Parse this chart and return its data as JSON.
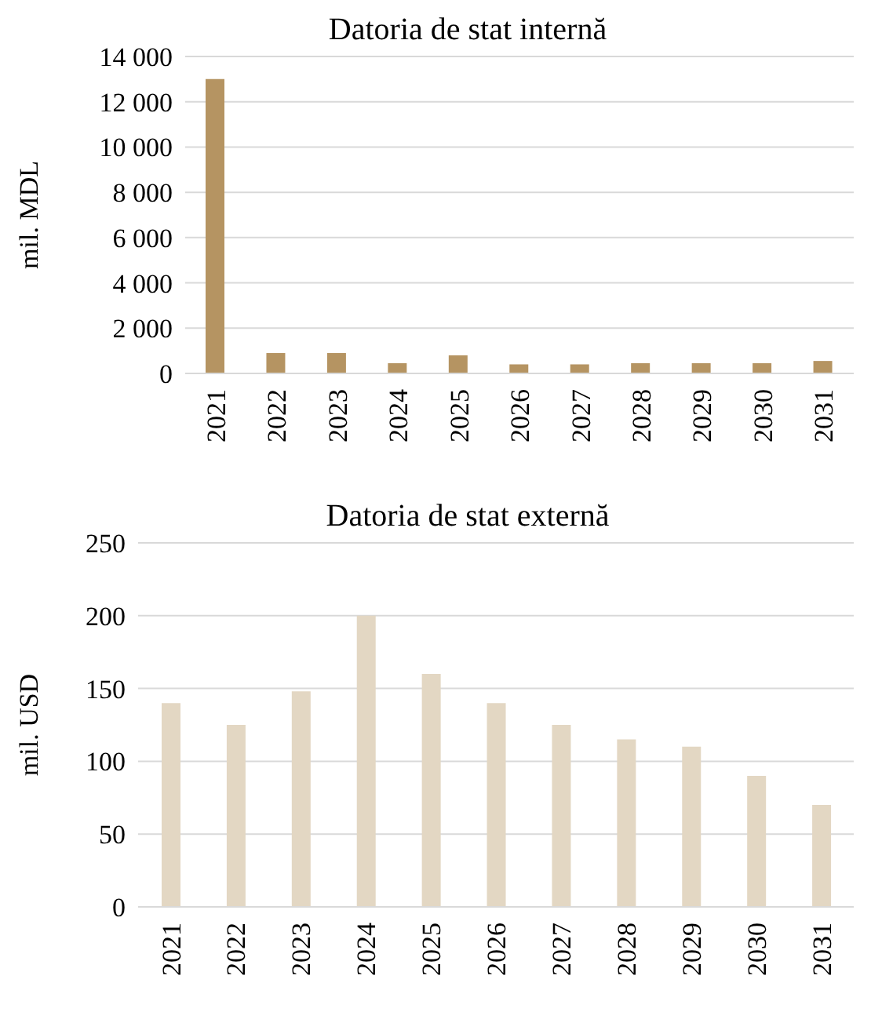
{
  "chart_data": [
    {
      "type": "bar",
      "title": "Datoria de stat internă",
      "ylabel": "mil. MDL",
      "categories": [
        "2021",
        "2022",
        "2023",
        "2024",
        "2025",
        "2026",
        "2027",
        "2028",
        "2029",
        "2030",
        "2031"
      ],
      "series": [
        {
          "color": "#b59462",
          "values": [
            13000,
            900,
            900,
            450,
            800,
            400,
            400,
            450,
            450,
            450,
            550
          ]
        }
      ],
      "ylim": [
        0,
        14000
      ],
      "yticks": [
        {
          "value": 0,
          "label": "0"
        },
        {
          "value": 2000,
          "label": "2 000"
        },
        {
          "value": 4000,
          "label": "4 000"
        },
        {
          "value": 6000,
          "label": "6 000"
        },
        {
          "value": 8000,
          "label": "8 000"
        },
        {
          "value": 10000,
          "label": "10 000"
        },
        {
          "value": 12000,
          "label": "12 000"
        },
        {
          "value": 14000,
          "label": "14 000"
        }
      ],
      "grid": "y"
    },
    {
      "type": "bar",
      "title": "Datoria de stat externă",
      "ylabel": "mil. USD",
      "categories": [
        "2021",
        "2022",
        "2023",
        "2024",
        "2025",
        "2026",
        "2027",
        "2028",
        "2029",
        "2030",
        "2031"
      ],
      "series": [
        {
          "color": "#e3d7c3",
          "values": [
            140,
            125,
            148,
            200,
            160,
            140,
            125,
            115,
            110,
            90,
            70
          ]
        }
      ],
      "ylim": [
        0,
        250
      ],
      "yticks": [
        0,
        50,
        100,
        150,
        200,
        250
      ],
      "grid": "y"
    }
  ]
}
